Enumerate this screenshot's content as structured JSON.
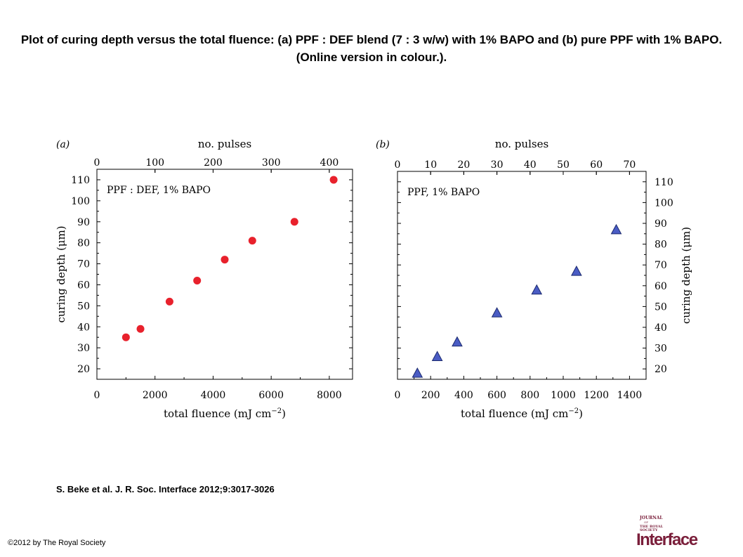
{
  "title": "Plot of curing depth versus the total fluence: (a) PPF : DEF blend (7 : 3 w/w) with 1% BAPO and (b) pure PPF with 1% BAPO. (Online version in colour.).",
  "citation": "S. Beke et al. J. R. Soc. Interface 2012;9:3017-3026",
  "copyright": "©2012 by The Royal Society",
  "logo": {
    "line1": "JOURNAL",
    "line2": "OF",
    "line3": "THE ROYAL",
    "line4": "SOCIETY",
    "word": "Interface"
  },
  "colors": {
    "series_a": "#e8212c",
    "series_b": "#4a5cc4",
    "series_b_edge": "#1b2a6e",
    "logo": "#7a1e3a"
  },
  "chart_data": [
    {
      "type": "scatter",
      "panel_label": "(a)",
      "annotation": "PPF : DEF, 1% BAPO",
      "xlabel": "total fluence (mJ cm−2)",
      "ylabel": "curing depth (μm)",
      "top_xlabel": "no. pulses",
      "xlim": [
        0,
        8800
      ],
      "ylim": [
        15,
        115
      ],
      "top_xlim": [
        0,
        440
      ],
      "xticks": [
        0,
        2000,
        4000,
        6000,
        8000
      ],
      "yticks": [
        20,
        30,
        40,
        50,
        60,
        70,
        80,
        90,
        100,
        110
      ],
      "top_xticks": [
        0,
        100,
        200,
        300,
        400
      ],
      "y_axis_side": "left",
      "marker": "circle",
      "series": [
        {
          "x": [
            1000,
            1500,
            2500,
            3450,
            4400,
            5350,
            6800,
            8150
          ],
          "y": [
            35,
            39,
            52,
            62,
            72,
            81,
            90,
            110
          ]
        }
      ]
    },
    {
      "type": "scatter",
      "panel_label": "(b)",
      "annotation": "PPF, 1% BAPO",
      "xlabel": "total fluence (mJ cm−2)",
      "ylabel": "curing depth (μm)",
      "top_xlabel": "no. pulses",
      "xlim": [
        0,
        1500
      ],
      "ylim": [
        15,
        115
      ],
      "top_xlim": [
        0,
        75
      ],
      "xticks": [
        0,
        200,
        400,
        600,
        800,
        1000,
        1200,
        1400
      ],
      "yticks": [
        20,
        30,
        40,
        50,
        60,
        70,
        80,
        90,
        100,
        110
      ],
      "top_xticks": [
        0,
        10,
        20,
        30,
        40,
        50,
        60,
        70
      ],
      "y_axis_side": "right",
      "marker": "triangle",
      "series": [
        {
          "x": [
            120,
            240,
            360,
            600,
            840,
            1080,
            1320
          ],
          "y": [
            18,
            26,
            33,
            47,
            58,
            67,
            87
          ]
        }
      ]
    }
  ]
}
